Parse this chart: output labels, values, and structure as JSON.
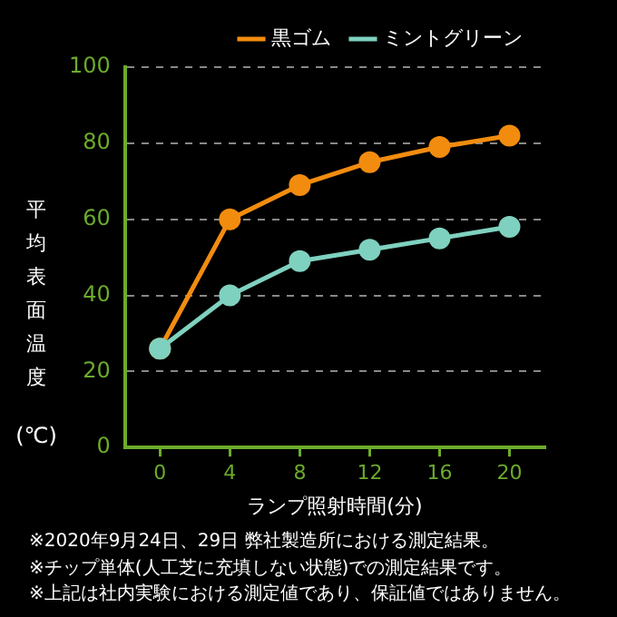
{
  "chart_data": {
    "type": "line",
    "xlabel": "ランプ照射時間(分)",
    "ylabel": "平均表面温度(℃)",
    "x": [
      0,
      4,
      8,
      12,
      16,
      20
    ],
    "series": [
      {
        "name": "黒ゴム",
        "color": "#f28c0f",
        "values": [
          26,
          60,
          69,
          75,
          79,
          82
        ]
      },
      {
        "name": "ミントグリーン",
        "color": "#7fd1bf",
        "values": [
          26,
          40,
          49,
          52,
          55,
          58
        ]
      }
    ],
    "xlim": [
      -2,
      22
    ],
    "xticks": [
      0,
      4,
      8,
      12,
      16,
      20
    ],
    "ylim": [
      0,
      100
    ],
    "yticks": [
      0,
      20,
      40,
      60,
      80,
      100
    ],
    "grid": "y",
    "legend": "top right",
    "marker": "circle",
    "line_style": "solid",
    "annotations": [
      "※2020年9月24日、29日 弊社製造所における測定結果。",
      "※チップ単体(人工芝に充填しない状態)での測定結果です。",
      "※上記は社内実験における測定値であり、保証値ではありません。"
    ]
  }
}
